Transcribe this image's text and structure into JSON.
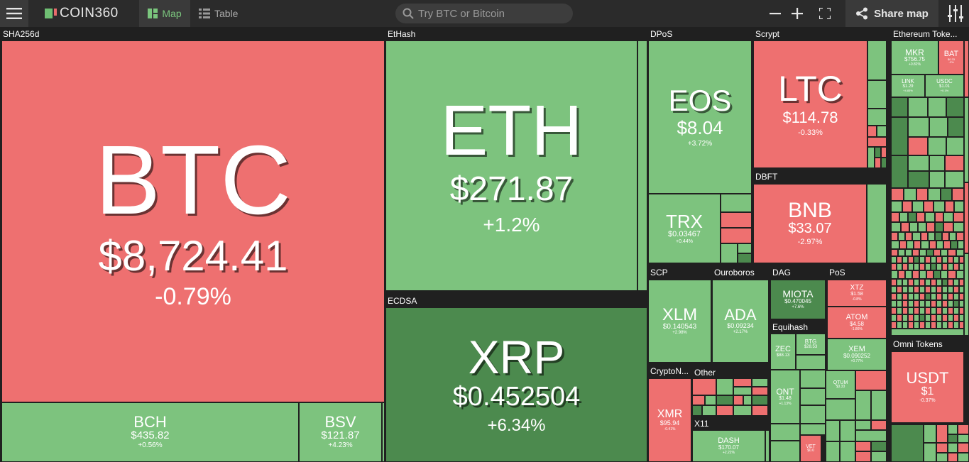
{
  "topbar": {
    "logo_text": "COIN360",
    "tabs": [
      {
        "label": "Map",
        "active": true
      },
      {
        "label": "Table",
        "active": false
      }
    ],
    "search_placeholder": "Try BTC or Bitcoin",
    "share_label": "Share map",
    "icons": [
      "menu-icon",
      "map-icon",
      "table-icon",
      "search-icon",
      "zoom-out-icon",
      "zoom-in-icon",
      "fullscreen-icon",
      "share-icon",
      "settings-icon"
    ]
  },
  "colors": {
    "down": "#ee7070",
    "up": "#7dc37e",
    "strong_up": "#4c8a4e",
    "background": "#202020",
    "accent": "#7bc67e"
  },
  "groups": {
    "sha256d": "SHA256d",
    "ethash": "EtHash",
    "ecdsa": "ECDSA",
    "dpos": "DPoS",
    "scrypt": "Scrypt",
    "dbft": "DBFT",
    "scp": "SCP",
    "ouroboros": "Ouroboros",
    "dag": "DAG",
    "pos": "PoS",
    "equihash": "Equihash",
    "cryptonight": "CryptoN...",
    "other": "Other",
    "x11": "X11",
    "ethereum_tokens": "Ethereum Toke...",
    "omni_tokens": "Omni Tokens"
  },
  "coins": {
    "btc": {
      "symbol": "BTC",
      "price": "$8,724.41",
      "change": "-0.79%"
    },
    "bch": {
      "symbol": "BCH",
      "price": "$435.82",
      "change": "+0.56%"
    },
    "bsv": {
      "symbol": "BSV",
      "price": "$121.87",
      "change": "+4.23%"
    },
    "eth": {
      "symbol": "ETH",
      "price": "$271.87",
      "change": "+1.2%"
    },
    "xrp": {
      "symbol": "XRP",
      "price": "$0.452504",
      "change": "+6.34%"
    },
    "eos": {
      "symbol": "EOS",
      "price": "$8.04",
      "change": "+3.72%"
    },
    "trx": {
      "symbol": "TRX",
      "price": "$0.03467",
      "change": "+0.44%"
    },
    "ltc": {
      "symbol": "LTC",
      "price": "$114.78",
      "change": "-0.33%"
    },
    "bnb": {
      "symbol": "BNB",
      "price": "$33.07",
      "change": "-2.97%"
    },
    "xlm": {
      "symbol": "XLM",
      "price": "$0.140543",
      "change": "+2.98%"
    },
    "ada": {
      "symbol": "ADA",
      "price": "$0.09234",
      "change": "+2.17%"
    },
    "miota": {
      "symbol": "MIOTA",
      "price": "$0.470045",
      "change": "+7.6%"
    },
    "xtz": {
      "symbol": "XTZ",
      "price": "$1.58",
      "change": "-0.8%"
    },
    "atom": {
      "symbol": "ATOM",
      "price": "$4.58",
      "change": "-1.86%"
    },
    "xem": {
      "symbol": "XEM",
      "price": "$0.090252",
      "change": "+0.77%"
    },
    "zec": {
      "symbol": "ZEC",
      "price": "$88.13"
    },
    "btg": {
      "symbol": "BTG",
      "price": "$28.53"
    },
    "ont": {
      "symbol": "ONT",
      "price": "$1.48",
      "change": "+1.13%"
    },
    "qtum": {
      "symbol": "QTUM",
      "price": "$3.33"
    },
    "xmr": {
      "symbol": "XMR",
      "price": "$95.94",
      "change": "-0.41%"
    },
    "dash": {
      "symbol": "DASH",
      "price": "$170.07",
      "change": "+2.22%"
    },
    "vet": {
      "symbol": "VET",
      "price": "$0.0"
    },
    "mkr": {
      "symbol": "MKR",
      "price": "$756.75",
      "change": "+0.82%"
    },
    "bat": {
      "symbol": "BAT",
      "price": "$0.33",
      "change": "-2%"
    },
    "link": {
      "symbol": "LINK",
      "price": "$1.29",
      "change": "+4.83%"
    },
    "usdc": {
      "symbol": "USDC",
      "price": "$1.01",
      "change": "+0.1%"
    },
    "usdt": {
      "symbol": "USDT",
      "price": "$1",
      "change": "-0.37%"
    }
  }
}
